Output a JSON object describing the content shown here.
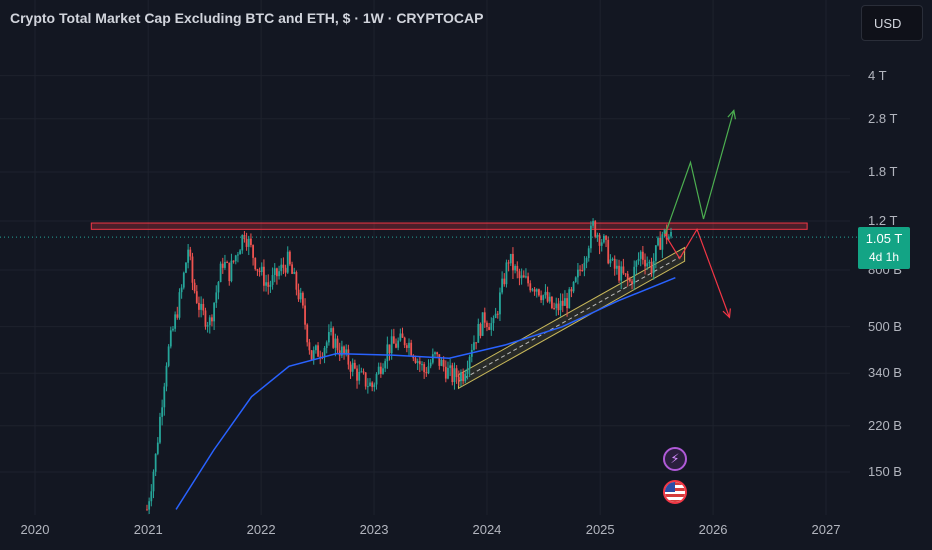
{
  "header": {
    "title": "Crypto Total Market Cap Excluding BTC and ETH, $ · 1W · CRYPTOCAP",
    "currency": "USD"
  },
  "price_badge": {
    "value": "1.05 T",
    "countdown": "4d 1h"
  },
  "colors": {
    "background": "#131722",
    "up": "#26a69a",
    "down": "#ef5350",
    "ma": "#2962ff",
    "resistance": "#f23645",
    "channel": "#c8b85a",
    "bull_path": "#4caf50",
    "bear_path": "#f23645"
  },
  "icons": {
    "flash": "lightning-icon",
    "flag": "us-flag-icon"
  },
  "chart_data": {
    "type": "candlestick",
    "title": "Crypto Total Market Cap Excluding BTC and ETH, $ · 1W · CRYPTOCAP",
    "y_scale": "log",
    "y_ticks": [
      "4 T",
      "2.8 T",
      "1.8 T",
      "1.2 T",
      "800 B",
      "500 B",
      "340 B",
      "220 B",
      "150 B"
    ],
    "x_ticks": [
      "2020",
      "2021",
      "2022",
      "2023",
      "2024",
      "2025",
      "2026",
      "2027"
    ],
    "last_price": "1.05 T",
    "price_path": [
      {
        "x": "2020-12-28",
        "y": 110
      },
      {
        "x": "2021-01-25",
        "y": 170
      },
      {
        "x": "2021-03-01",
        "y": 380
      },
      {
        "x": "2021-04-19",
        "y": 680
      },
      {
        "x": "2021-05-10",
        "y": 960
      },
      {
        "x": "2021-05-24",
        "y": 720
      },
      {
        "x": "2021-06-21",
        "y": 560
      },
      {
        "x": "2021-07-19",
        "y": 520
      },
      {
        "x": "2021-08-30",
        "y": 860
      },
      {
        "x": "2021-09-20",
        "y": 780
      },
      {
        "x": "2021-11-08",
        "y": 1100
      },
      {
        "x": "2021-12-20",
        "y": 820
      },
      {
        "x": "2022-01-24",
        "y": 700
      },
      {
        "x": "2022-03-28",
        "y": 860
      },
      {
        "x": "2022-05-09",
        "y": 620
      },
      {
        "x": "2022-06-13",
        "y": 390
      },
      {
        "x": "2022-07-18",
        "y": 420
      },
      {
        "x": "2022-08-15",
        "y": 460
      },
      {
        "x": "2022-11-14",
        "y": 330
      },
      {
        "x": "2022-12-26",
        "y": 305
      },
      {
        "x": "2023-02-13",
        "y": 420
      },
      {
        "x": "2023-04-17",
        "y": 450
      },
      {
        "x": "2023-06-12",
        "y": 345
      },
      {
        "x": "2023-07-17",
        "y": 390
      },
      {
        "x": "2023-09-11",
        "y": 330
      },
      {
        "x": "2023-10-16",
        "y": 340
      },
      {
        "x": "2023-11-13",
        "y": 430
      },
      {
        "x": "2023-12-25",
        "y": 540
      },
      {
        "x": "2024-01-22",
        "y": 500
      },
      {
        "x": "2024-03-11",
        "y": 880
      },
      {
        "x": "2024-04-15",
        "y": 740
      },
      {
        "x": "2024-06-10",
        "y": 700
      },
      {
        "x": "2024-08-05",
        "y": 570
      },
      {
        "x": "2024-09-30",
        "y": 640
      },
      {
        "x": "2024-11-11",
        "y": 900
      },
      {
        "x": "2024-12-09",
        "y": 1150
      },
      {
        "x": "2025-01-13",
        "y": 1000
      },
      {
        "x": "2025-02-10",
        "y": 820
      },
      {
        "x": "2025-04-07",
        "y": 720
      },
      {
        "x": "2025-05-12",
        "y": 920
      },
      {
        "x": "2025-06-16",
        "y": 820
      },
      {
        "x": "2025-07-21",
        "y": 1080
      },
      {
        "x": "2025-08-18",
        "y": 1050
      }
    ],
    "ma_path": [
      {
        "x": "2021-04-01",
        "y": 110
      },
      {
        "x": "2021-08-01",
        "y": 180
      },
      {
        "x": "2021-12-01",
        "y": 280
      },
      {
        "x": "2022-04-01",
        "y": 360
      },
      {
        "x": "2022-09-01",
        "y": 400
      },
      {
        "x": "2023-03-01",
        "y": 395
      },
      {
        "x": "2023-09-01",
        "y": 385
      },
      {
        "x": "2024-03-01",
        "y": 430
      },
      {
        "x": "2024-09-01",
        "y": 500
      },
      {
        "x": "2025-03-01",
        "y": 620
      },
      {
        "x": "2025-09-01",
        "y": 750
      }
    ],
    "resistance_zone": {
      "x0": "2020-07-01",
      "x1": "2026-11-01",
      "y0": 1120,
      "y1": 1180
    },
    "channel": {
      "start": {
        "x": "2023-10-01",
        "y": 300
      },
      "end": {
        "x": "2025-10-01",
        "y": 860
      },
      "upper_offset_pct": 12
    },
    "scenario_bull": [
      {
        "x": "2025-07-28",
        "y": 1060
      },
      {
        "x": "2025-10-20",
        "y": 1950
      },
      {
        "x": "2025-12-01",
        "y": 1220
      },
      {
        "x": "2026-03-09",
        "y": 3000
      }
    ],
    "scenario_bear": [
      {
        "x": "2025-07-28",
        "y": 1080
      },
      {
        "x": "2025-09-15",
        "y": 880
      },
      {
        "x": "2025-11-10",
        "y": 1120
      },
      {
        "x": "2026-02-23",
        "y": 540
      }
    ]
  }
}
